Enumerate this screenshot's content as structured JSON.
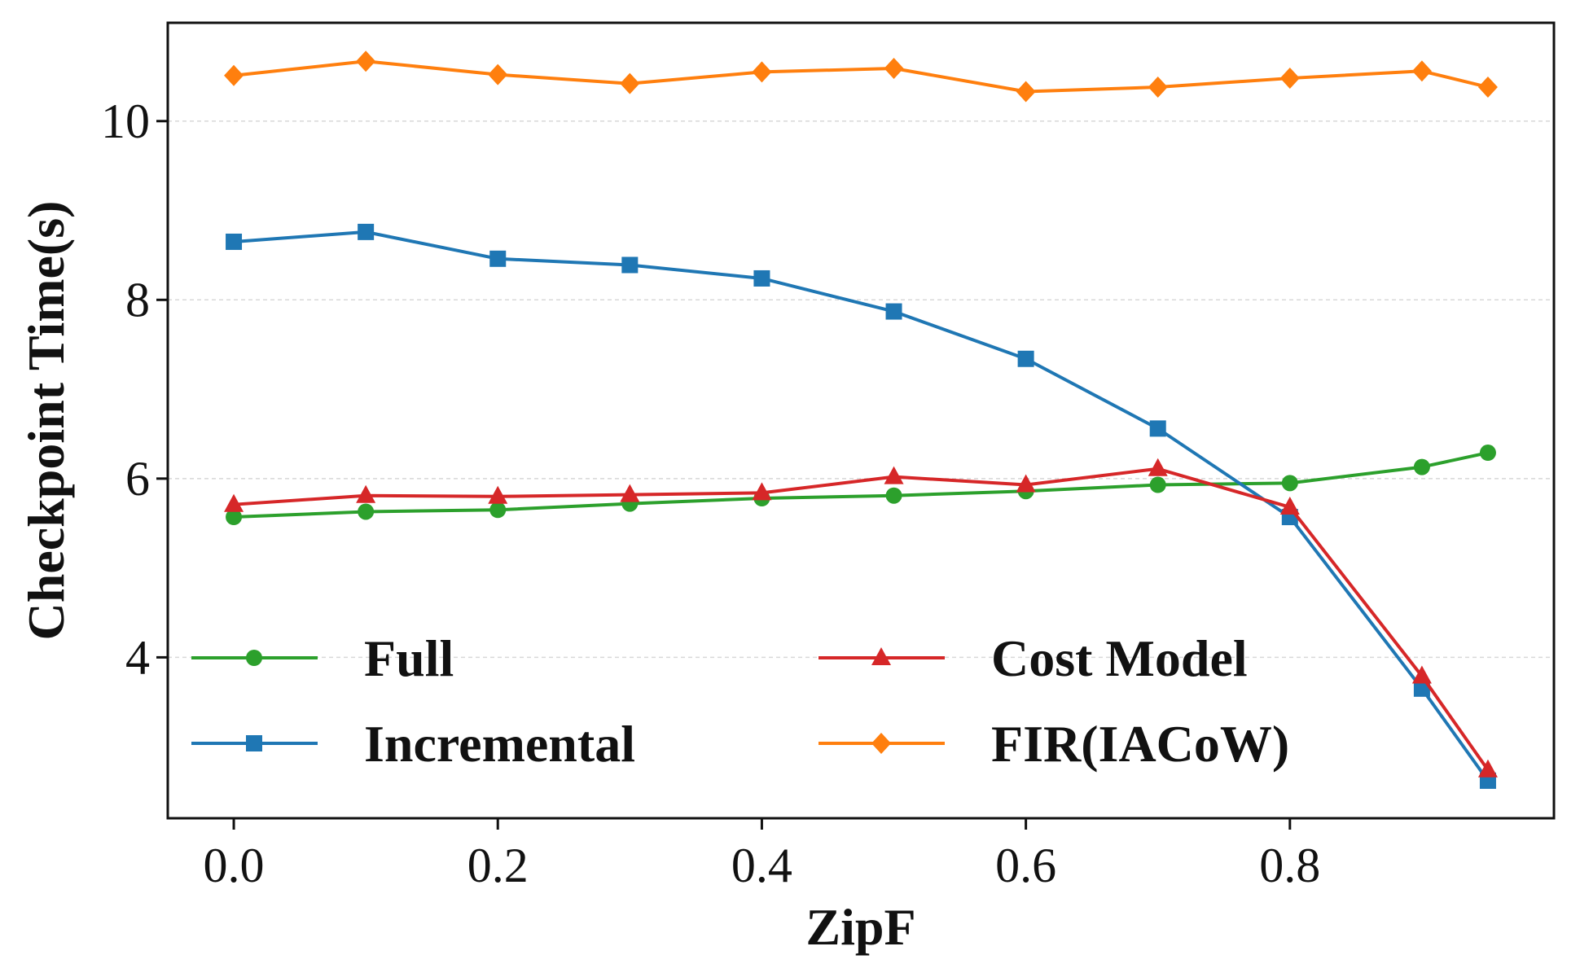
{
  "chart_data": {
    "type": "line",
    "xlabel": "ZipF",
    "ylabel": "Checkpoint Time(s)",
    "x": [
      0.0,
      0.1,
      0.2,
      0.3,
      0.4,
      0.5,
      0.6,
      0.7,
      0.8,
      0.9,
      0.95
    ],
    "xlim": [
      -0.05,
      1.0
    ],
    "ylim": [
      2.2,
      11.1
    ],
    "xticks": [
      "0.0",
      "0.2",
      "0.4",
      "0.6",
      "0.8"
    ],
    "xtick_values": [
      0.0,
      0.2,
      0.4,
      0.6,
      0.8
    ],
    "yticks": [
      "4",
      "6",
      "8",
      "10"
    ],
    "ytick_values": [
      4,
      6,
      8,
      10
    ],
    "grid": "horizontal dashed",
    "legend_position": "lower-left, two columns",
    "series": [
      {
        "name": "Full",
        "color": "#2ca02c",
        "marker": "circle",
        "values": [
          5.57,
          5.63,
          5.65,
          5.72,
          5.78,
          5.81,
          5.86,
          5.93,
          5.95,
          6.13,
          6.29
        ]
      },
      {
        "name": "Incremental",
        "color": "#1f77b4",
        "marker": "square",
        "values": [
          8.65,
          8.76,
          8.46,
          8.39,
          8.24,
          7.87,
          7.34,
          6.56,
          5.57,
          3.65,
          2.62
        ]
      },
      {
        "name": "Cost Model",
        "color": "#d62728",
        "marker": "triangle",
        "values": [
          5.71,
          5.81,
          5.8,
          5.82,
          5.84,
          6.02,
          5.93,
          6.11,
          5.68,
          3.79,
          2.74
        ]
      },
      {
        "name": "FIR(IACoW)",
        "color": "#ff7f0e",
        "marker": "diamond",
        "values": [
          10.51,
          10.67,
          10.52,
          10.42,
          10.55,
          10.59,
          10.33,
          10.38,
          10.48,
          10.56,
          10.38
        ]
      }
    ]
  }
}
